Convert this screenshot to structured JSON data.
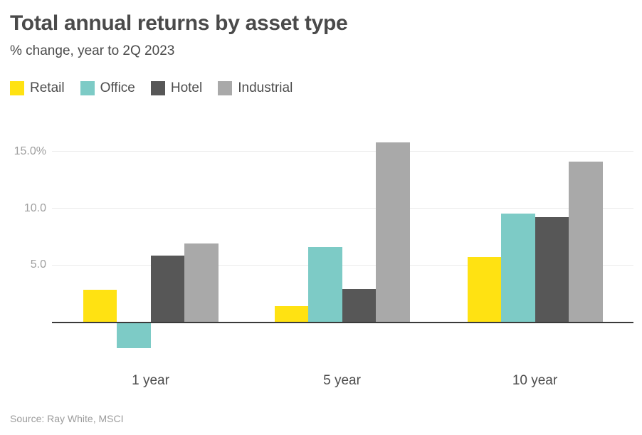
{
  "header": {
    "title": "Total annual returns by asset type",
    "subtitle": "% change, year to 2Q 2023"
  },
  "footer": {
    "source": "Source: Ray White, MSCI"
  },
  "colors": {
    "retail": "#FFE212",
    "office": "#7DCBC6",
    "hotel": "#575757",
    "industrial": "#A9A9A9",
    "baseline": "#3a3a3a",
    "gridline": "#ebebeb"
  },
  "chart_data": {
    "type": "bar",
    "title": "Total annual returns by asset type",
    "subtitle": "% change, year to 2Q 2023",
    "categories": [
      "1 year",
      "5 year",
      "10 year"
    ],
    "series": [
      {
        "name": "Retail",
        "color": "#FFE212",
        "values": [
          2.8,
          1.4,
          5.7
        ]
      },
      {
        "name": "Office",
        "color": "#7DCBC6",
        "values": [
          -2.2,
          6.6,
          9.5
        ]
      },
      {
        "name": "Hotel",
        "color": "#575757",
        "values": [
          5.8,
          2.9,
          9.2
        ]
      },
      {
        "name": "Industrial",
        "color": "#A9A9A9",
        "values": [
          6.9,
          15.8,
          14.1
        ]
      }
    ],
    "yticks": [
      {
        "value": 5,
        "label": "5.0"
      },
      {
        "value": 10,
        "label": "10.0"
      },
      {
        "value": 15,
        "label": "15.0%"
      }
    ],
    "ylim": [
      -2.8,
      16.3
    ],
    "baseline_value": 0,
    "grid": true,
    "legend_position": "top-left",
    "source": "Source: Ray White, MSCI"
  }
}
